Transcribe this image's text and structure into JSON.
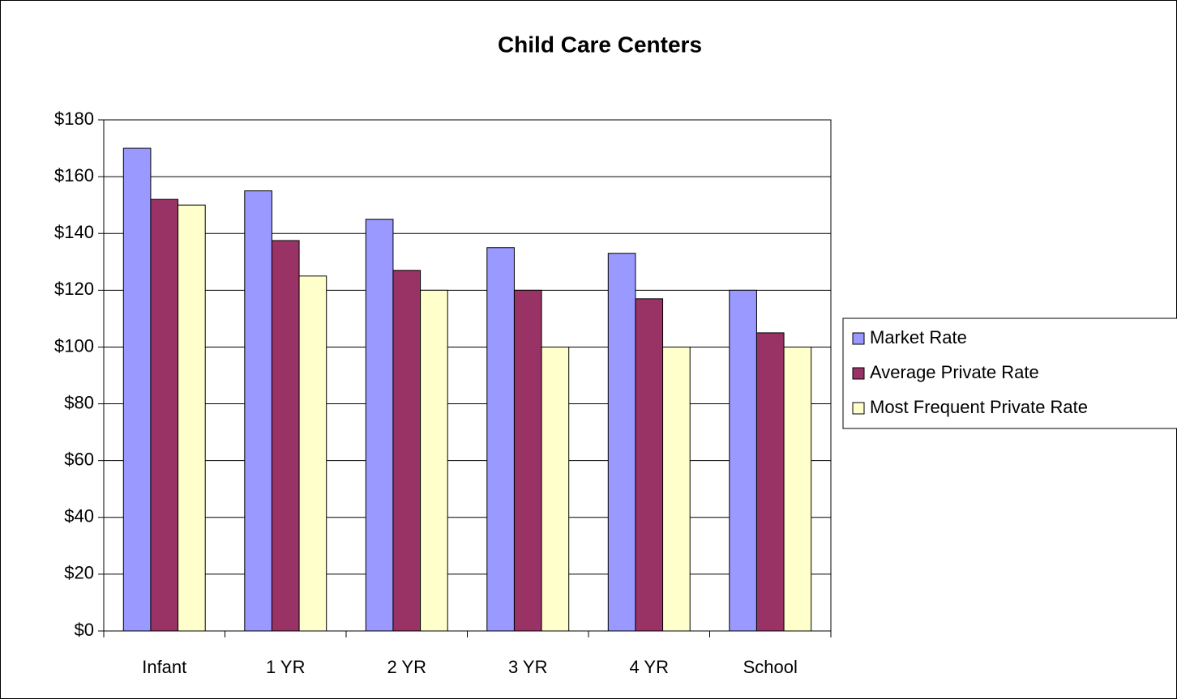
{
  "chart_data": {
    "type": "bar",
    "title": "Child Care Centers",
    "categories": [
      "Infant",
      "1 YR",
      "2 YR",
      "3 YR",
      "4 YR",
      "School"
    ],
    "series": [
      {
        "name": "Market Rate",
        "color": "#9999ff",
        "values": [
          170,
          155,
          145,
          135,
          133,
          120
        ]
      },
      {
        "name": "Average Private Rate",
        "color": "#993366",
        "values": [
          152,
          137.5,
          127,
          120,
          117,
          105
        ]
      },
      {
        "name": "Most Frequent Private Rate",
        "color": "#ffffcc",
        "values": [
          150,
          125,
          120,
          100,
          100,
          100
        ]
      }
    ],
    "ylim": [
      0,
      180
    ],
    "yticks": [
      {
        "value": 0,
        "label": "$0"
      },
      {
        "value": 20,
        "label": "$20"
      },
      {
        "value": 40,
        "label": "$40"
      },
      {
        "value": 60,
        "label": "$60"
      },
      {
        "value": 80,
        "label": "$80"
      },
      {
        "value": 100,
        "label": "$100"
      },
      {
        "value": 120,
        "label": "$120"
      },
      {
        "value": 140,
        "label": "$140"
      },
      {
        "value": 160,
        "label": "$160"
      },
      {
        "value": 180,
        "label": "$180"
      }
    ],
    "grid": true,
    "legend": "right"
  }
}
